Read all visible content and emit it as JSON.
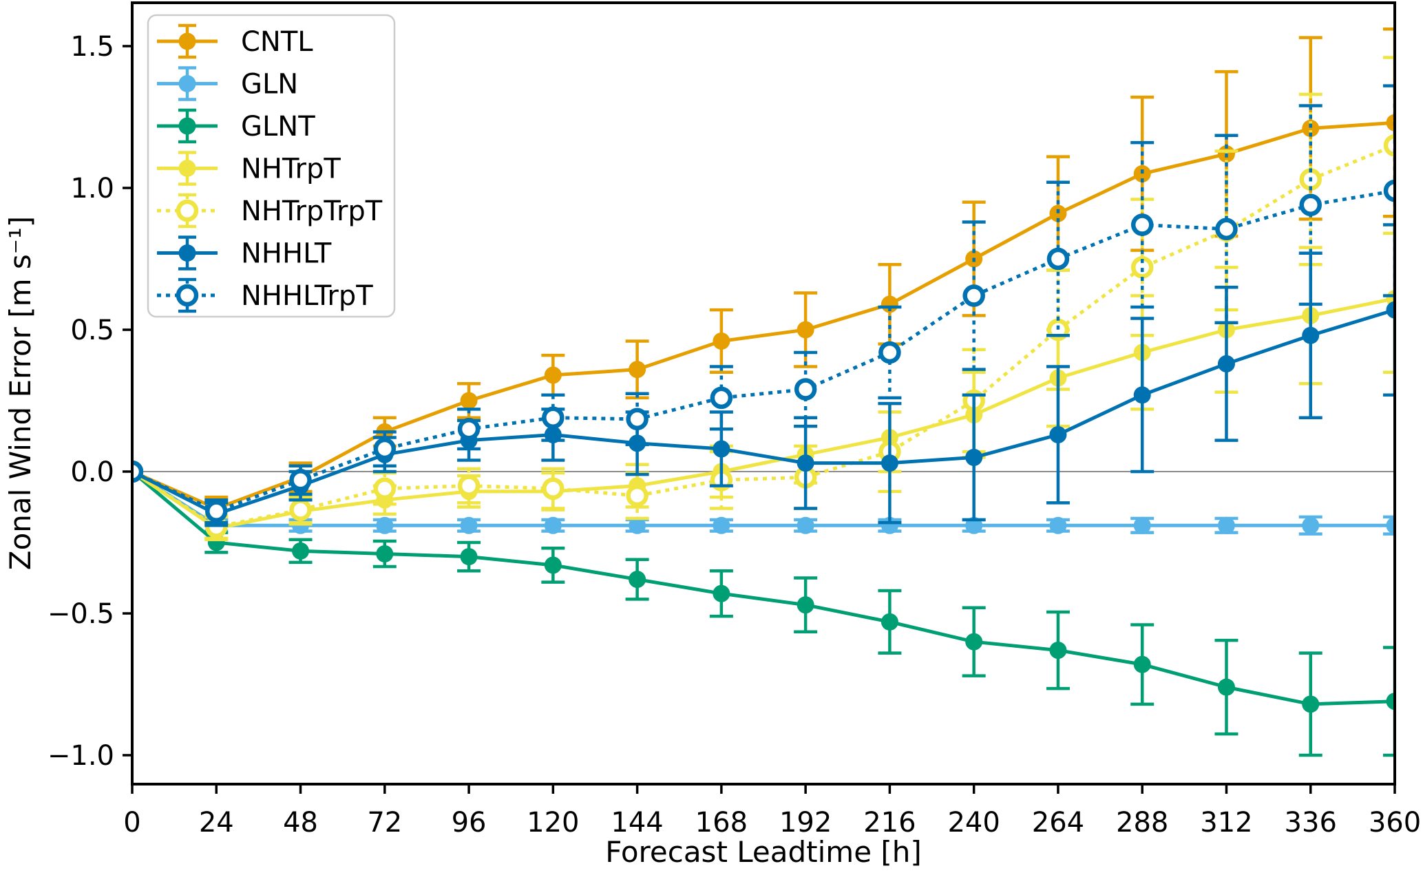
{
  "figure": {
    "background": "#ffffff",
    "axis_color": "#000000",
    "zero_line_color": "#8c8c8c",
    "legend_border_color": "#cccccc"
  },
  "chart_data": {
    "type": "line",
    "title": "",
    "xlabel": "Forecast Leadtime [h]",
    "ylabel": "Zonal Wind Error [m s⁻¹]",
    "grid": false,
    "zero_line": true,
    "legend_position": "upper-left",
    "xlim": [
      0,
      360
    ],
    "ylim": [
      -1.1,
      1.65
    ],
    "x": [
      0,
      24,
      48,
      72,
      96,
      120,
      144,
      168,
      192,
      216,
      240,
      264,
      288,
      312,
      336,
      360
    ],
    "xtick_labels": [
      "0",
      "24",
      "48",
      "72",
      "96",
      "120",
      "144",
      "168",
      "192",
      "216",
      "240",
      "264",
      "288",
      "312",
      "336",
      "360"
    ],
    "yticks": [
      {
        "value": 1.5,
        "label": "1.5"
      },
      {
        "value": 1.0,
        "label": "1.0"
      },
      {
        "value": 0.5,
        "label": "0.5"
      },
      {
        "value": 0.0,
        "label": "0.0"
      },
      {
        "value": -0.5,
        "label": "−0.5"
      },
      {
        "value": -1.0,
        "label": "−1.0"
      }
    ],
    "series": [
      {
        "name": "CNTL",
        "color": "#E69F00",
        "line_style": "solid",
        "marker": "filled-circle",
        "values": [
          0,
          -0.13,
          -0.02,
          0.14,
          0.25,
          0.34,
          0.36,
          0.46,
          0.5,
          0.59,
          0.75,
          0.91,
          1.05,
          1.12,
          1.21,
          1.23
        ],
        "errors": [
          0,
          0.04,
          0.05,
          0.05,
          0.06,
          0.07,
          0.1,
          0.11,
          0.13,
          0.14,
          0.2,
          0.2,
          0.27,
          0.29,
          0.32,
          0.33
        ]
      },
      {
        "name": "GLN",
        "color": "#56B4E9",
        "line_style": "solid",
        "marker": "filled-circle",
        "values": [
          0,
          -0.19,
          -0.19,
          -0.19,
          -0.19,
          -0.19,
          -0.19,
          -0.19,
          -0.19,
          -0.19,
          -0.19,
          -0.19,
          -0.19,
          -0.19,
          -0.19,
          -0.19
        ],
        "errors": [
          0,
          0.02,
          0.02,
          0.02,
          0.02,
          0.02,
          0.02,
          0.02,
          0.02,
          0.02,
          0.02,
          0.02,
          0.025,
          0.025,
          0.03,
          0.03
        ]
      },
      {
        "name": "GLNT",
        "color": "#009E73",
        "line_style": "solid",
        "marker": "filled-circle",
        "values": [
          0,
          -0.25,
          -0.28,
          -0.29,
          -0.3,
          -0.33,
          -0.38,
          -0.43,
          -0.47,
          -0.53,
          -0.6,
          -0.63,
          -0.68,
          -0.76,
          -0.82,
          -0.81
        ],
        "errors": [
          0,
          0.035,
          0.04,
          0.045,
          0.05,
          0.06,
          0.07,
          0.08,
          0.095,
          0.11,
          0.12,
          0.135,
          0.14,
          0.165,
          0.18,
          0.19
        ]
      },
      {
        "name": "NHTrpT",
        "color": "#F0E442",
        "line_style": "solid",
        "marker": "filled-circle",
        "values": [
          0,
          -0.2,
          -0.14,
          -0.1,
          -0.07,
          -0.07,
          -0.05,
          0.0,
          0.06,
          0.12,
          0.2,
          0.33,
          0.42,
          0.5,
          0.55,
          0.61
        ],
        "errors": [
          0,
          0.04,
          0.045,
          0.05,
          0.055,
          0.065,
          0.075,
          0.09,
          0.1,
          0.12,
          0.15,
          0.17,
          0.2,
          0.22,
          0.24,
          0.26
        ]
      },
      {
        "name": "NHTrpTrpT",
        "color": "#F0E442",
        "line_style": "dotted",
        "marker": "open-circle",
        "values": [
          0,
          -0.195,
          -0.135,
          -0.06,
          -0.05,
          -0.06,
          -0.085,
          -0.03,
          -0.02,
          0.07,
          0.25,
          0.5,
          0.72,
          0.85,
          1.03,
          1.15
        ],
        "errors": [
          0,
          0.04,
          0.045,
          0.055,
          0.06,
          0.07,
          0.08,
          0.1,
          0.11,
          0.14,
          0.18,
          0.21,
          0.24,
          0.28,
          0.3,
          0.31
        ]
      },
      {
        "name": "NHHLT",
        "color": "#0072B2",
        "line_style": "solid",
        "marker": "filled-circle",
        "values": [
          0,
          -0.15,
          -0.05,
          0.06,
          0.11,
          0.13,
          0.1,
          0.08,
          0.03,
          0.03,
          0.05,
          0.13,
          0.27,
          0.38,
          0.48,
          0.57
        ],
        "errors": [
          0,
          0.04,
          0.05,
          0.06,
          0.07,
          0.09,
          0.11,
          0.13,
          0.16,
          0.21,
          0.22,
          0.24,
          0.27,
          0.27,
          0.29,
          0.3
        ]
      },
      {
        "name": "NHHLTrpT",
        "color": "#0072B2",
        "line_style": "dotted",
        "marker": "open-circle",
        "values": [
          0,
          -0.14,
          -0.03,
          0.08,
          0.15,
          0.19,
          0.185,
          0.26,
          0.29,
          0.42,
          0.62,
          0.75,
          0.87,
          0.855,
          0.94,
          0.99
        ],
        "errors": [
          0,
          0.04,
          0.05,
          0.06,
          0.07,
          0.08,
          0.09,
          0.11,
          0.13,
          0.16,
          0.26,
          0.27,
          0.29,
          0.33,
          0.35,
          0.37
        ]
      }
    ]
  }
}
